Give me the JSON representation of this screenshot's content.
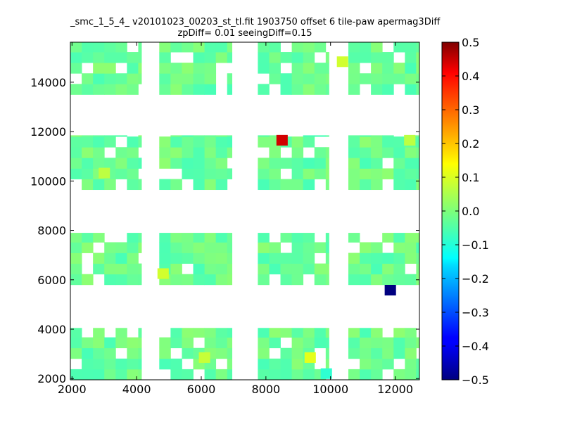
{
  "chart_data": {
    "type": "heatmap",
    "title": "_smc_1_5_4_ v20101023_00203_st_tl.fit 1903750 offset 6 tile-paw apermag3Diff",
    "subtitle": "zpDiff= 0.01 seeingDiff=0.15",
    "xlabel": "",
    "ylabel": "",
    "xlim": [
      1950,
      12750
    ],
    "ylim": [
      1950,
      15620
    ],
    "x_ticks": [
      "2000",
      "4000",
      "6000",
      "8000",
      "10000",
      "12000"
    ],
    "y_ticks": [
      "2000",
      "4000",
      "6000",
      "8000",
      "10000",
      "12000",
      "14000"
    ],
    "colorbar": {
      "colormap": "jet",
      "range": [
        -0.5,
        0.5
      ],
      "ticks": [
        "0.5",
        "0.4",
        "0.3",
        "0.2",
        "0.1",
        "0.0",
        "−0.1",
        "−0.2",
        "−0.3",
        "−0.4",
        "−0.5"
      ]
    },
    "cell_size": [
      350,
      430
    ],
    "base_value": -0.02,
    "blocks": [
      {
        "row_band": "top",
        "x": [
          1950,
          4150
        ],
        "y": [
          13500,
          15620
        ],
        "value": 0.0
      },
      {
        "row_band": "top",
        "x": [
          4700,
          6950
        ],
        "y": [
          13500,
          15620
        ],
        "value": 0.0
      },
      {
        "row_band": "top",
        "x": [
          7750,
          9950
        ],
        "y": [
          13500,
          15620
        ],
        "value": 0.0
      },
      {
        "row_band": "top",
        "x": [
          10550,
          12750
        ],
        "y": [
          13500,
          15620
        ],
        "value": 0.0
      },
      {
        "row_band": "upper-mid",
        "x": [
          1950,
          4150
        ],
        "y": [
          9650,
          11850
        ],
        "value": 0.0
      },
      {
        "row_band": "upper-mid",
        "x": [
          4700,
          6950
        ],
        "y": [
          9650,
          11850
        ],
        "value": 0.0
      },
      {
        "row_band": "upper-mid",
        "x": [
          7750,
          9950
        ],
        "y": [
          9650,
          11850
        ],
        "value": 0.0
      },
      {
        "row_band": "upper-mid",
        "x": [
          10550,
          12750
        ],
        "y": [
          9650,
          11850
        ],
        "value": 0.0
      },
      {
        "row_band": "lower-mid",
        "x": [
          1950,
          4150
        ],
        "y": [
          5800,
          7900
        ],
        "value": 0.0
      },
      {
        "row_band": "lower-mid",
        "x": [
          4700,
          6950
        ],
        "y": [
          5800,
          7900
        ],
        "value": 0.0
      },
      {
        "row_band": "lower-mid",
        "x": [
          7750,
          9950
        ],
        "y": [
          5800,
          7900
        ],
        "value": 0.0
      },
      {
        "row_band": "lower-mid",
        "x": [
          10550,
          12750
        ],
        "y": [
          5800,
          7900
        ],
        "value": 0.0
      },
      {
        "row_band": "bottom",
        "x": [
          1950,
          4150
        ],
        "y": [
          1950,
          4050
        ],
        "value": 0.0
      },
      {
        "row_band": "bottom",
        "x": [
          4700,
          6950
        ],
        "y": [
          1950,
          4050
        ],
        "value": 0.0
      },
      {
        "row_band": "bottom",
        "x": [
          7750,
          9950
        ],
        "y": [
          1950,
          4050
        ],
        "value": 0.0
      },
      {
        "row_band": "bottom",
        "x": [
          10550,
          12750
        ],
        "y": [
          1950,
          4050
        ],
        "value": 0.0
      }
    ],
    "highlight_cells": [
      {
        "x": 8500,
        "y": 11650,
        "value": 0.42
      },
      {
        "x": 11850,
        "y": 5580,
        "value": -0.5
      },
      {
        "x": 9370,
        "y": 2850,
        "value": 0.1
      },
      {
        "x": 4820,
        "y": 6250,
        "value": 0.08
      },
      {
        "x": 10370,
        "y": 14830,
        "value": 0.08
      },
      {
        "x": 6100,
        "y": 2850,
        "value": 0.07
      },
      {
        "x": 3000,
        "y": 10320,
        "value": 0.06
      },
      {
        "x": 12450,
        "y": 11650,
        "value": 0.06
      },
      {
        "x": 9870,
        "y": 2200,
        "value": -0.08
      }
    ]
  }
}
